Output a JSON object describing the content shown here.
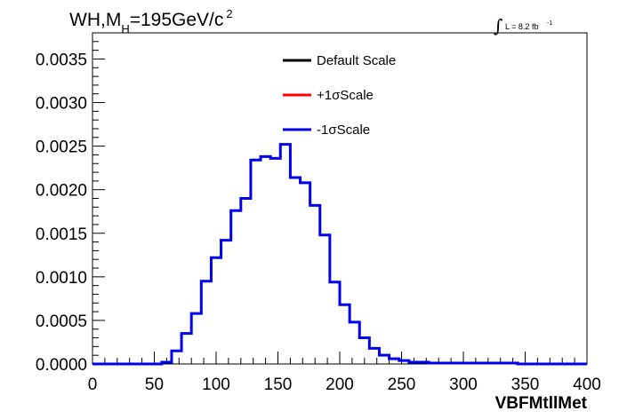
{
  "chart_data": {
    "type": "histogram",
    "title_main": "WH,M",
    "title_sub": "H",
    "title_mass": "=195GeV/c",
    "title_sup": "2",
    "lumi": {
      "integral": "∫",
      "text": "L = 8.2 fb",
      "sup": "-1"
    },
    "xlabel": "VBFMtllMet",
    "xlim": [
      0,
      400
    ],
    "ylim": [
      0,
      0.0038
    ],
    "x_ticks": [
      0,
      50,
      100,
      150,
      200,
      250,
      300,
      350,
      400
    ],
    "x_tick_labels": [
      "0",
      "50",
      "100",
      "150",
      "200",
      "250",
      "300",
      "350",
      "400"
    ],
    "y_ticks": [
      0,
      0.0005,
      0.001,
      0.0015,
      0.002,
      0.0025,
      0.003,
      0.0035
    ],
    "y_tick_labels": [
      "0.0000",
      "0.0005",
      "0.0010",
      "0.0015",
      "0.0020",
      "0.0025",
      "0.0030",
      "0.0035"
    ],
    "bin_width": 8,
    "bin_edges_start": 0,
    "legend": {
      "position": "top-center",
      "entries": [
        {
          "label": "Default Scale",
          "color": "#000000"
        },
        {
          "label": "+1σScale",
          "color": "#ff0000"
        },
        {
          "label": "-1σScale",
          "color": "#0000ee"
        }
      ]
    },
    "series": [
      {
        "name": "-1σScale",
        "color": "#0000ee",
        "values": [
          0,
          0,
          0,
          0,
          0,
          0,
          0,
          2e-05,
          0.00015,
          0.00035,
          0.00058,
          0.00095,
          0.00122,
          0.00142,
          0.00176,
          0.0019,
          0.00234,
          0.00238,
          0.00236,
          0.00252,
          0.00214,
          0.00208,
          0.00182,
          0.00148,
          0.00094,
          0.00068,
          0.00048,
          0.0003,
          0.00018,
          0.0001,
          6e-05,
          4e-05,
          2e-05,
          2e-05,
          1e-05,
          1e-05,
          1e-05,
          1e-05,
          1e-05,
          1e-05,
          1e-05,
          1e-05,
          1e-05,
          0,
          0,
          0,
          0,
          0,
          0,
          0
        ]
      }
    ]
  }
}
